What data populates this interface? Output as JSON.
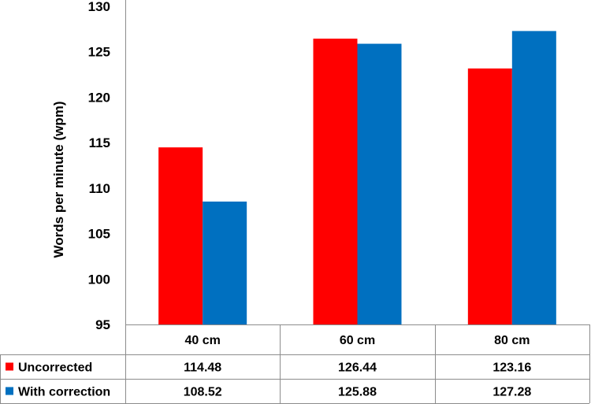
{
  "chart_data": {
    "type": "bar",
    "categories": [
      "40 cm",
      "60 cm",
      "80 cm"
    ],
    "series": [
      {
        "name": "Uncorrected",
        "color": "#ff0000",
        "values": [
          114.48,
          126.44,
          123.16
        ],
        "labels": [
          "114.48",
          "126.44",
          "123.16"
        ]
      },
      {
        "name": "With correction",
        "color": "#0070c0",
        "values": [
          108.52,
          125.88,
          127.28
        ],
        "labels": [
          "108.52",
          "125.88",
          "127.28"
        ]
      }
    ],
    "title": "",
    "xlabel": "",
    "ylabel": "Words per minute (wpm)",
    "ylim": [
      95,
      130
    ],
    "yticks": [
      95,
      100,
      105,
      110,
      115,
      120,
      125,
      130
    ],
    "grid": false,
    "legend": "data table below chart"
  }
}
